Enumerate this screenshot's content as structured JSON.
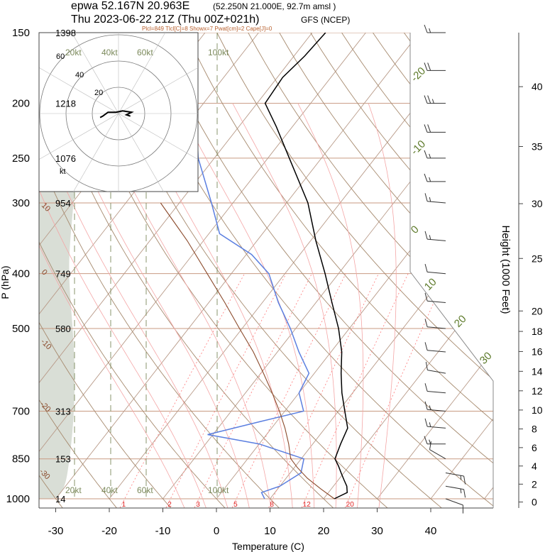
{
  "header": {
    "station_line": "epwa 52.167N 20.963E",
    "station_detail": "(52.250N 21.000E,  92.7m amsl )",
    "time_line": "Thu 2023-06-22 21Z (Thu 00Z+021h)",
    "model": "GFS (NCEP)",
    "indices": "Plcl=849 Tlcl[C]=8 Showx=7 Pwat[cm]=2 Cape[J]=0"
  },
  "chart_data": {
    "type": "line",
    "subtype": "skew-t log-p sounding",
    "xlabel": "Temperature (C)",
    "ylabel": "P (hPa)",
    "right_label": "Height (1000 Feet)",
    "xlim": [
      -34,
      45
    ],
    "ylim": [
      1000,
      150
    ],
    "y_scale": "log",
    "pressure_ticks": [
      150,
      200,
      250,
      300,
      400,
      500,
      700,
      850,
      1000
    ],
    "pressure_labels": [
      "150",
      "200",
      "250",
      "300",
      "400",
      "500",
      "700",
      "850",
      "1000"
    ],
    "height_m_labels": [
      "1398",
      "1218",
      "1076",
      "954",
      "749",
      "580",
      "313",
      "153",
      "14"
    ],
    "temperature_ticks": [
      -30,
      -20,
      -10,
      0,
      10,
      20,
      30,
      40
    ],
    "temperature_labels": [
      "-30",
      "-20",
      "-10",
      "0",
      "10",
      "20",
      "30",
      "40"
    ],
    "height_kft_ticks": [
      0,
      2,
      4,
      6,
      8,
      10,
      12,
      14,
      16,
      18,
      20,
      25,
      30,
      35,
      40
    ],
    "height_kft_labels": [
      "0",
      "2",
      "4",
      "6",
      "8",
      "10",
      "12",
      "14",
      "16",
      "18",
      "20",
      "25",
      "30",
      "35",
      "40"
    ],
    "isotherm_labels": [
      "30",
      "20",
      "10",
      "0",
      "-10",
      "-20",
      "-30"
    ],
    "isotherm_labels_upper": [
      "-20",
      "-10",
      "0",
      "10"
    ],
    "mixing_ratio_labels": [
      "1",
      "2",
      "3",
      "5",
      "8",
      "12",
      "20"
    ],
    "wind_speed_labels": [
      "20kt",
      "40kt",
      "60kt",
      "100kt"
    ],
    "hodograph_ring_labels": [
      "20",
      "40",
      "60"
    ],
    "hodograph_unit": "kt",
    "series": [
      {
        "key": "temperature",
        "color": "#000000",
        "points": [
          [
            1000,
            22
          ],
          [
            975,
            23.5
          ],
          [
            950,
            22.5
          ],
          [
            925,
            21
          ],
          [
            900,
            19.5
          ],
          [
            875,
            18
          ],
          [
            850,
            16.3
          ],
          [
            800,
            15.2
          ],
          [
            750,
            14.2
          ],
          [
            700,
            11.2
          ],
          [
            650,
            8
          ],
          [
            600,
            5
          ],
          [
            550,
            2
          ],
          [
            500,
            -2
          ],
          [
            450,
            -7
          ],
          [
            400,
            -12.5
          ],
          [
            350,
            -19
          ],
          [
            300,
            -26
          ],
          [
            250,
            -36
          ],
          [
            220,
            -43
          ],
          [
            200,
            -48.5
          ],
          [
            180,
            -49
          ],
          [
            165,
            -48
          ],
          [
            150,
            -47.5
          ]
        ]
      },
      {
        "key": "dewpoint",
        "color": "#5b7fe0",
        "points": [
          [
            1000,
            9
          ],
          [
            975,
            7.5
          ],
          [
            950,
            10
          ],
          [
            900,
            12
          ],
          [
            850,
            10.5
          ],
          [
            800,
            0
          ],
          [
            770,
            -11
          ],
          [
            730,
            -3
          ],
          [
            700,
            3.5
          ],
          [
            650,
            0
          ],
          [
            600,
            -1
          ],
          [
            550,
            -6
          ],
          [
            500,
            -11
          ],
          [
            450,
            -17
          ],
          [
            400,
            -23
          ],
          [
            370,
            -29
          ],
          [
            340,
            -38
          ],
          [
            300,
            -44
          ],
          [
            250,
            -53
          ],
          [
            200,
            -61.5
          ],
          [
            180,
            -65
          ],
          [
            165,
            -69
          ],
          [
            150,
            -74
          ]
        ]
      },
      {
        "key": "parcel",
        "color": "#8b4a2b",
        "points": [
          [
            1000,
            22
          ],
          [
            960,
            18
          ],
          [
            920,
            14
          ],
          [
            880,
            10.5
          ],
          [
            849,
            8
          ],
          [
            800,
            5.5
          ],
          [
            750,
            2.5
          ],
          [
            700,
            -1
          ],
          [
            650,
            -5
          ],
          [
            600,
            -9.5
          ],
          [
            550,
            -14.5
          ],
          [
            500,
            -20.5
          ],
          [
            450,
            -27
          ],
          [
            400,
            -34.5
          ],
          [
            350,
            -43
          ],
          [
            300,
            -53.5
          ]
        ]
      }
    ],
    "hodograph": {
      "wind_u_v_kt": [
        [
          9,
          -2
        ],
        [
          6,
          -1
        ],
        [
          10,
          1
        ],
        [
          3,
          2
        ],
        [
          -2,
          1
        ],
        [
          -8,
          1
        ],
        [
          -12,
          -2
        ],
        [
          -14,
          -3
        ]
      ]
    },
    "wind_barbs": [
      {
        "p": 150,
        "dir": 270,
        "kt": 15
      },
      {
        "p": 175,
        "dir": 270,
        "kt": 20
      },
      {
        "p": 200,
        "dir": 270,
        "kt": 25
      },
      {
        "p": 225,
        "dir": 270,
        "kt": 20
      },
      {
        "p": 250,
        "dir": 270,
        "kt": 15
      },
      {
        "p": 275,
        "dir": 270,
        "kt": 15
      },
      {
        "p": 300,
        "dir": 275,
        "kt": 15
      },
      {
        "p": 350,
        "dir": 275,
        "kt": 15
      },
      {
        "p": 400,
        "dir": 275,
        "kt": 10
      },
      {
        "p": 450,
        "dir": 275,
        "kt": 10
      },
      {
        "p": 500,
        "dir": 275,
        "kt": 10
      },
      {
        "p": 550,
        "dir": 275,
        "kt": 10
      },
      {
        "p": 600,
        "dir": 280,
        "kt": 10
      },
      {
        "p": 650,
        "dir": 275,
        "kt": 10
      },
      {
        "p": 700,
        "dir": 275,
        "kt": 15
      },
      {
        "p": 750,
        "dir": 275,
        "kt": 15
      },
      {
        "p": 800,
        "dir": 270,
        "kt": 15
      },
      {
        "p": 850,
        "dir": 300,
        "kt": 10
      },
      {
        "p": 900,
        "dir": 100,
        "kt": 15
      },
      {
        "p": 950,
        "dir": 100,
        "kt": 15
      },
      {
        "p": 1000,
        "dir": 110,
        "kt": 10
      }
    ]
  },
  "colors": {
    "isobar": "#c99a82",
    "isotherm": "#b89a88",
    "dry_adiabat": "#a68a6e",
    "moist_adiabat": "#f4a6a6",
    "mixing_ratio": "#ff7a7a",
    "wind_speed_guides": "#7c8a5c",
    "terrain_shade": "#d9ded6",
    "label_olive": "#5d7a2a",
    "label_brown": "#8b4a2b"
  }
}
